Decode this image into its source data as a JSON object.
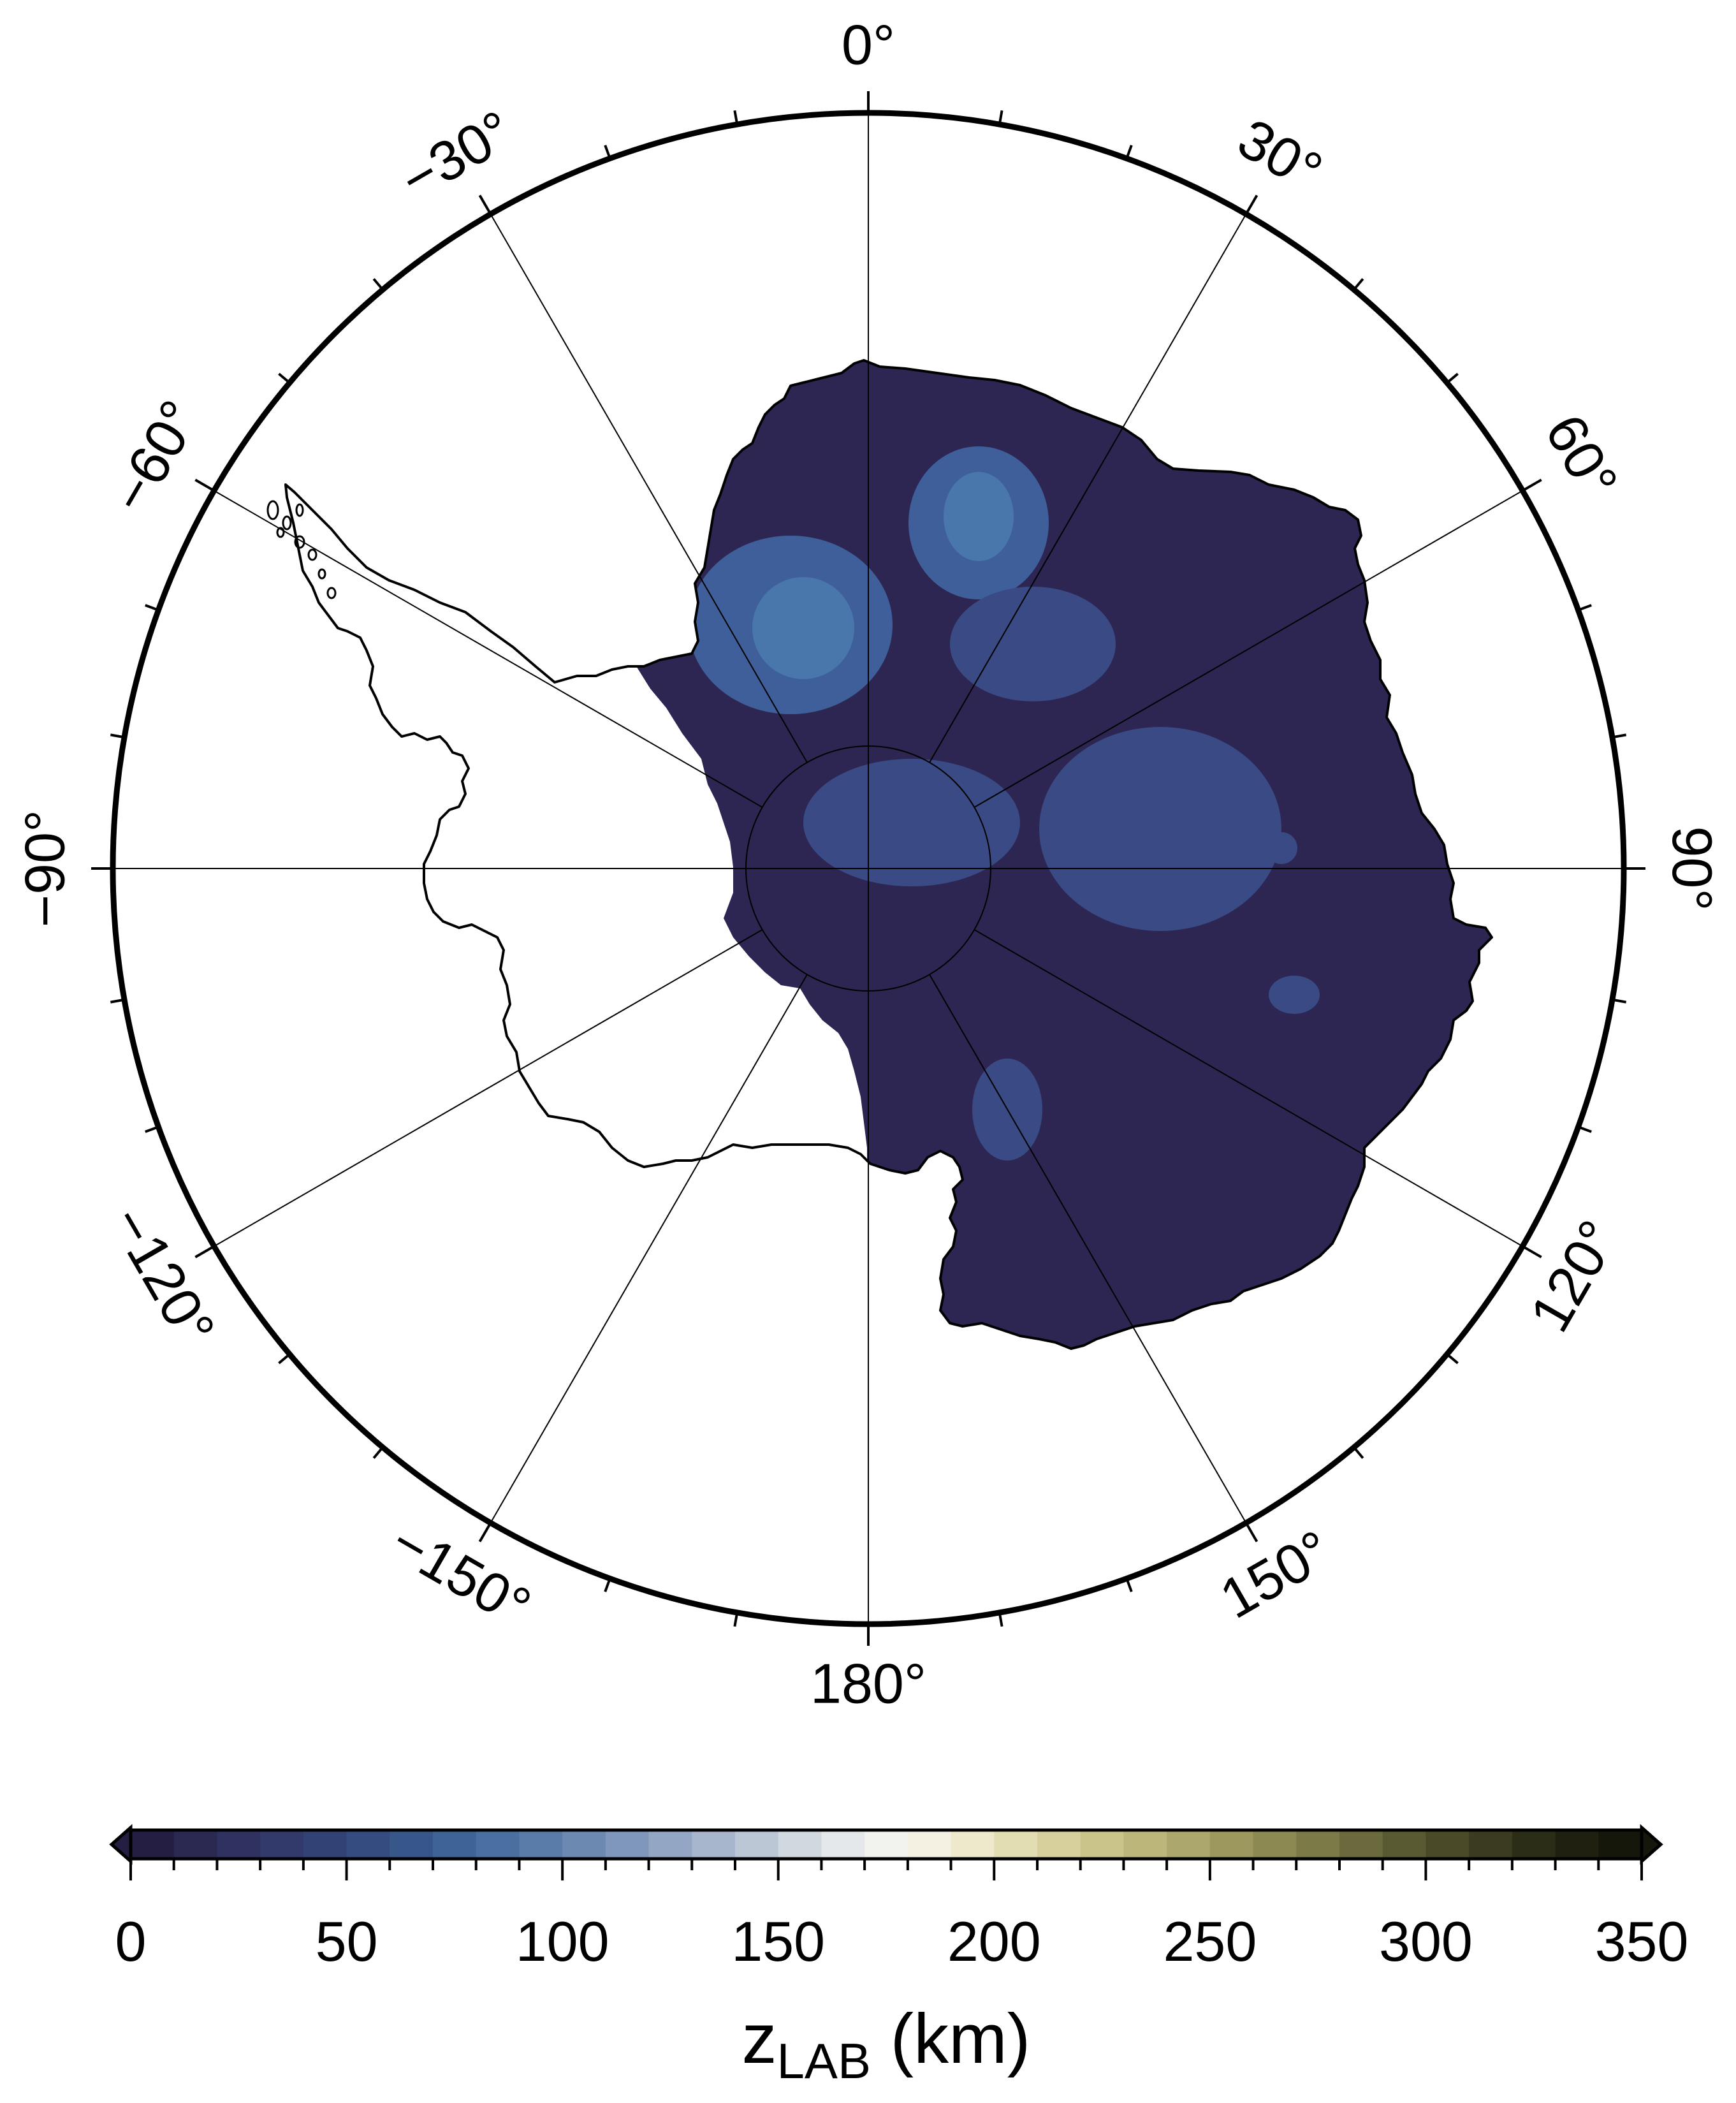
{
  "map": {
    "projection": "polar stereographic (south pole)",
    "longitude_labels": [
      {
        "lon": 0,
        "text": "0°"
      },
      {
        "lon": 30,
        "text": "30°"
      },
      {
        "lon": 60,
        "text": "60°"
      },
      {
        "lon": 90,
        "text": "90°"
      },
      {
        "lon": 120,
        "text": "120°"
      },
      {
        "lon": 150,
        "text": "150°"
      },
      {
        "lon": 180,
        "text": "180°"
      },
      {
        "lon": -150,
        "text": "−150°"
      },
      {
        "lon": -120,
        "text": "−120°"
      },
      {
        "lon": -90,
        "text": "−90°"
      },
      {
        "lon": -60,
        "text": "−60°"
      },
      {
        "lon": -30,
        "text": "−30°"
      }
    ],
    "colors": {
      "background_fill": "#2e2652",
      "low_anomaly": "#3a4a85",
      "mid_anomaly": "#3f5f9a",
      "high_anomaly": "#4a77ab",
      "coastline": "#000000",
      "frame": "#000000"
    }
  },
  "colorbar": {
    "label_main": "z",
    "label_sub": "LAB",
    "label_unit": " (km)",
    "min": 0,
    "max": 350,
    "step": 10,
    "tick_labels": [
      "0",
      "50",
      "100",
      "150",
      "200",
      "250",
      "300",
      "350"
    ],
    "colors": [
      "#241e42",
      "#2b2852",
      "#2f3160",
      "#32396b",
      "#334275",
      "#354c80",
      "#37578b",
      "#3d6397",
      "#4a6fa1",
      "#5a7ca9",
      "#6c89b1",
      "#7f97ba",
      "#93a6c3",
      "#a7b6cc",
      "#bcc7d6",
      "#d0d8e0",
      "#e4e8ea",
      "#f2f2ee",
      "#f4f1e3",
      "#ede9ca",
      "#e3ddb2",
      "#d8d09c",
      "#cbc48a",
      "#bcb67b",
      "#aca76c",
      "#9c985e",
      "#8c8952",
      "#7c7a47",
      "#6b6a3c",
      "#5a5a32",
      "#4a4a28",
      "#3a3b1f",
      "#2c2d17",
      "#1f2010",
      "#16170b"
    ]
  }
}
